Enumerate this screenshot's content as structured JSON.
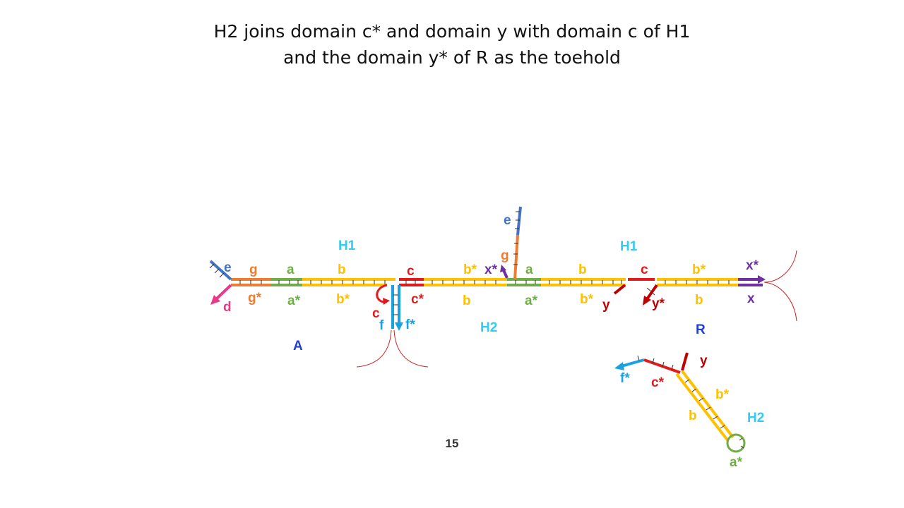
{
  "slide": {
    "title_line1": "H2 joins domain c* and domain y with domain c of H1",
    "title_line2": "and the domain y* of R as the toehold",
    "page_number": "15"
  },
  "colors": {
    "e": "#4472C4",
    "d": "#E8398A",
    "g": "#ED7D31",
    "a": "#70AD47",
    "b": "#FFC000",
    "c": "#E31A1C",
    "f": "#1BA1E2",
    "x": "#7030A0",
    "y": "#C00000",
    "strand": "#CC2222",
    "complex": "#1F3FD6",
    "hairpin": "#33CCEE"
  },
  "labels": {
    "A": "A",
    "R": "R",
    "h1_left": "H1",
    "h1_right": "H1",
    "h2_mid": "H2",
    "h2_right": "H2",
    "top_e_left": "e",
    "top_g_left": "g",
    "top_a_left": "a",
    "top_b_left": "b",
    "top_c_left": "c",
    "top_bs_left": "b*",
    "top_xs_left": "x*",
    "vert_e": "e",
    "vert_g": "g",
    "top_a_right": "a",
    "top_b_right": "b",
    "top_c_right": "c",
    "top_bs_right": "b*",
    "top_xs_right": "x*",
    "bot_d": "d",
    "bot_gs": "g*",
    "bot_as_left": "a*",
    "bot_bs_left": "b*",
    "bot_c_loop": "c",
    "bot_cs_left": "c*",
    "bot_b_mid": "b",
    "bot_f": "f",
    "bot_fs": "f*",
    "bot_as_right": "a*",
    "bot_bs_right": "b*",
    "bot_y": "y",
    "bot_ys": "y*",
    "bot_b_right": "b",
    "bot_x": "x",
    "h2r_fs": "f*",
    "h2r_cs": "c*",
    "h2r_y": "y",
    "h2r_bs": "b*",
    "h2r_b": "b",
    "h2r_as": "a*"
  }
}
